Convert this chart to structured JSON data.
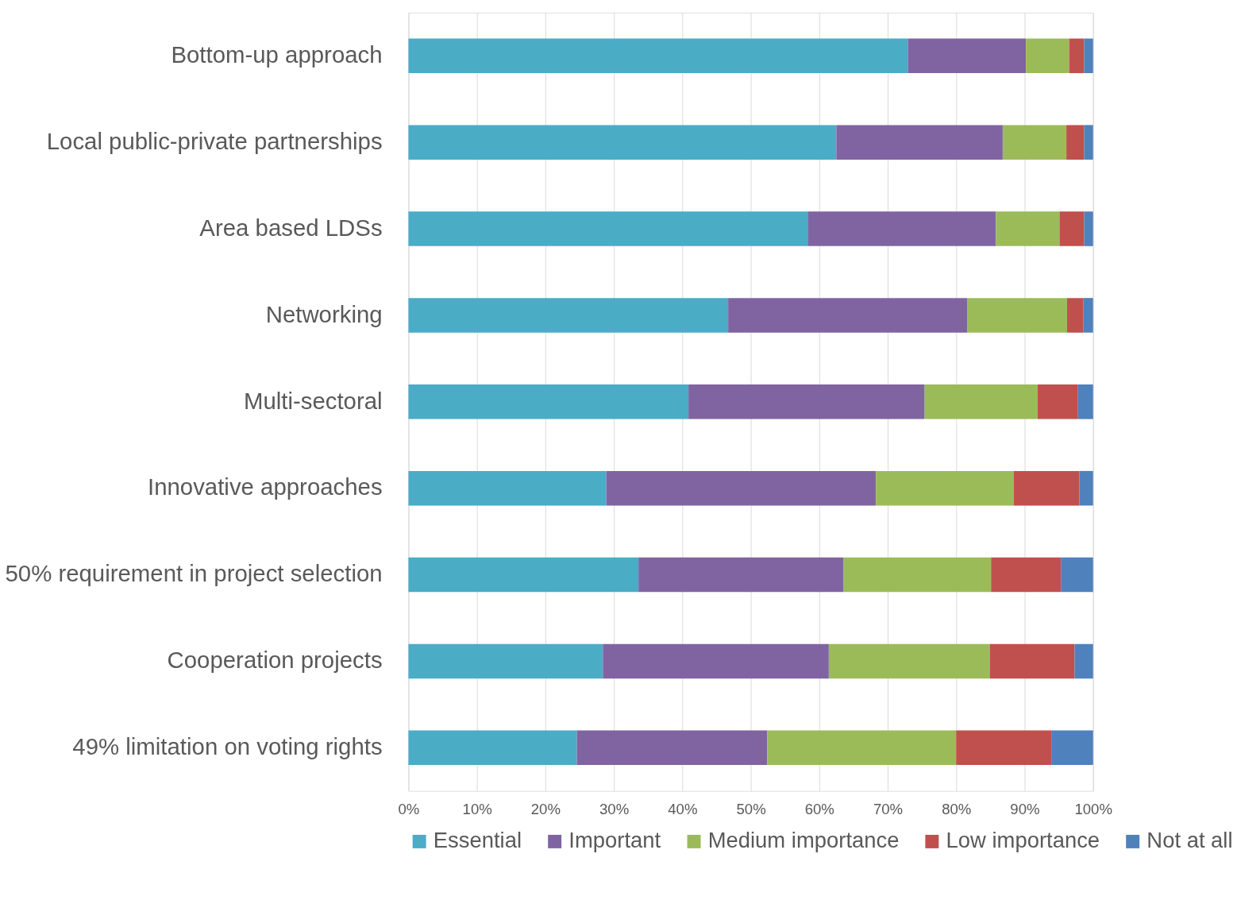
{
  "chart_data": {
    "type": "bar",
    "orientation": "horizontal",
    "stacked": true,
    "categories": [
      "Bottom-up approach",
      "Local public-private partnerships",
      "Area based LDSs",
      "Networking",
      "Multi-sectoral",
      "Innovative approaches",
      "50% requirement in project selection",
      "Cooperation projects",
      "49% limitation on voting rights"
    ],
    "series": [
      {
        "name": "Essential",
        "color": "#4bacc6",
        "values": [
          73.0,
          62.5,
          58.4,
          46.7,
          40.9,
          28.9,
          33.6,
          28.4,
          24.6
        ]
      },
      {
        "name": "Important",
        "color": "#8064a2",
        "values": [
          17.2,
          24.3,
          27.4,
          34.9,
          34.5,
          39.4,
          29.9,
          33.0,
          27.8
        ]
      },
      {
        "name": "Medium importance",
        "color": "#9bbb59",
        "values": [
          6.3,
          9.3,
          9.3,
          14.6,
          16.5,
          20.1,
          21.6,
          23.5,
          27.6
        ]
      },
      {
        "name": "Low importance",
        "color": "#c0504d",
        "values": [
          2.2,
          2.6,
          3.6,
          2.4,
          5.9,
          9.6,
          10.2,
          12.4,
          13.9
        ]
      },
      {
        "name": "Not at all",
        "color": "#4f81bd",
        "values": [
          1.3,
          1.3,
          1.3,
          1.4,
          2.2,
          2.0,
          4.7,
          2.7,
          6.1
        ]
      }
    ],
    "xlim": [
      0,
      100
    ],
    "xticks": [
      {
        "value": 0,
        "label": "0%"
      },
      {
        "value": 10,
        "label": "10%"
      },
      {
        "value": 20,
        "label": "20%"
      },
      {
        "value": 30,
        "label": "30%"
      },
      {
        "value": 40,
        "label": "40%"
      },
      {
        "value": 50,
        "label": "50%"
      },
      {
        "value": 60,
        "label": "60%"
      },
      {
        "value": 70,
        "label": "70%"
      },
      {
        "value": 80,
        "label": "80%"
      },
      {
        "value": 90,
        "label": "90%"
      },
      {
        "value": 100,
        "label": "100%"
      }
    ],
    "grid": "x",
    "legend": "bottom"
  }
}
